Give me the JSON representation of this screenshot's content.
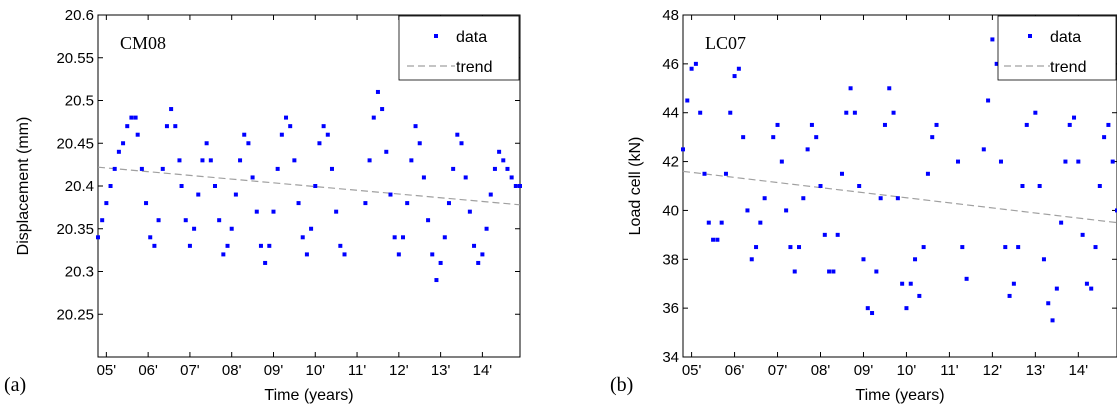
{
  "chart_data": [
    {
      "type": "scatter",
      "panel_label": "(a)",
      "title": "CM08",
      "xlabel": "Time (years)",
      "ylabel": "Displacement (mm)",
      "xlim": [
        2004.8,
        2014.9
      ],
      "ylim": [
        20.2,
        20.6
      ],
      "xticks": [
        2005,
        2006,
        2007,
        2008,
        2009,
        2010,
        2011,
        2012,
        2013,
        2014
      ],
      "xtick_labels": [
        "05'",
        "06'",
        "07'",
        "08'",
        "09'",
        "10'",
        "11'",
        "12'",
        "13'",
        "14'"
      ],
      "yticks": [
        20.25,
        20.3,
        20.35,
        20.4,
        20.45,
        20.5,
        20.55,
        20.6
      ],
      "ytick_labels": [
        "20.25",
        "20.3",
        "20.35",
        "20.4",
        "20.45",
        "20.5",
        "20.55",
        "20.6"
      ],
      "legend": {
        "position": "top-right",
        "entries": [
          "data",
          "trend"
        ]
      },
      "series": [
        {
          "name": "data",
          "color": "#0000ff",
          "x": [
            2004.8,
            2004.9,
            2005.0,
            2005.1,
            2005.2,
            2005.3,
            2005.4,
            2005.5,
            2005.6,
            2005.7,
            2005.75,
            2005.85,
            2005.95,
            2006.05,
            2006.15,
            2006.25,
            2006.35,
            2006.45,
            2006.55,
            2006.65,
            2006.75,
            2006.8,
            2006.9,
            2007.0,
            2007.1,
            2007.2,
            2007.3,
            2007.4,
            2007.5,
            2007.6,
            2007.7,
            2007.8,
            2007.9,
            2008.0,
            2008.1,
            2008.2,
            2008.3,
            2008.4,
            2008.5,
            2008.6,
            2008.7,
            2008.8,
            2008.9,
            2009.0,
            2009.1,
            2009.2,
            2009.3,
            2009.4,
            2009.5,
            2009.6,
            2009.7,
            2009.8,
            2009.9,
            2010.0,
            2010.1,
            2010.2,
            2010.3,
            2010.4,
            2010.5,
            2010.6,
            2010.7,
            2011.2,
            2011.3,
            2011.4,
            2011.5,
            2011.6,
            2011.7,
            2011.8,
            2011.9,
            2012.0,
            2012.1,
            2012.2,
            2012.3,
            2012.4,
            2012.5,
            2012.6,
            2012.7,
            2012.8,
            2012.9,
            2013.0,
            2013.1,
            2013.2,
            2013.3,
            2013.4,
            2013.5,
            2013.6,
            2013.7,
            2013.8,
            2013.9,
            2014.0,
            2014.1,
            2014.2,
            2014.3,
            2014.4,
            2014.5,
            2014.6,
            2014.7,
            2014.8,
            2014.9
          ],
          "y": [
            20.34,
            20.36,
            20.38,
            20.4,
            20.42,
            20.44,
            20.45,
            20.47,
            20.48,
            20.48,
            20.46,
            20.42,
            20.38,
            20.34,
            20.33,
            20.36,
            20.42,
            20.47,
            20.49,
            20.47,
            20.43,
            20.4,
            20.36,
            20.33,
            20.35,
            20.39,
            20.43,
            20.45,
            20.43,
            20.4,
            20.36,
            20.32,
            20.33,
            20.35,
            20.39,
            20.43,
            20.46,
            20.45,
            20.41,
            20.37,
            20.33,
            20.31,
            20.33,
            20.37,
            20.42,
            20.46,
            20.48,
            20.47,
            20.43,
            20.38,
            20.34,
            20.32,
            20.35,
            20.4,
            20.45,
            20.47,
            20.46,
            20.42,
            20.37,
            20.33,
            20.32,
            20.38,
            20.43,
            20.48,
            20.51,
            20.49,
            20.44,
            20.39,
            20.34,
            20.32,
            20.34,
            20.38,
            20.43,
            20.47,
            20.45,
            20.41,
            20.36,
            20.32,
            20.29,
            20.31,
            20.34,
            20.38,
            20.42,
            20.46,
            20.45,
            20.41,
            20.37,
            20.33,
            20.31,
            20.32,
            20.35,
            20.39,
            20.42,
            20.44,
            20.43,
            20.42,
            20.41,
            20.4,
            20.4
          ]
        },
        {
          "name": "trend",
          "color": "#a0a0a0",
          "x": [
            2004.8,
            2014.9
          ],
          "y": [
            20.422,
            20.378
          ]
        }
      ]
    },
    {
      "type": "scatter",
      "panel_label": "(b)",
      "title": "LC07",
      "xlabel": "Time (years)",
      "ylabel": "Load cell (kN)",
      "xlim": [
        2004.8,
        2014.9
      ],
      "ylim": [
        34,
        48
      ],
      "xticks": [
        2005,
        2006,
        2007,
        2008,
        2009,
        2010,
        2011,
        2012,
        2013,
        2014
      ],
      "xtick_labels": [
        "05'",
        "06'",
        "07'",
        "08'",
        "09'",
        "10'",
        "11'",
        "12'",
        "13'",
        "14'"
      ],
      "yticks": [
        34,
        36,
        38,
        40,
        42,
        44,
        46,
        48
      ],
      "ytick_labels": [
        "34",
        "36",
        "38",
        "40",
        "42",
        "44",
        "46",
        "48"
      ],
      "legend": {
        "position": "top-right",
        "entries": [
          "data",
          "trend"
        ]
      },
      "series": [
        {
          "name": "data",
          "color": "#0000ff",
          "x": [
            2004.8,
            2004.9,
            2005.0,
            2005.1,
            2005.2,
            2005.3,
            2005.4,
            2005.5,
            2005.6,
            2005.7,
            2005.8,
            2005.9,
            2006.0,
            2006.1,
            2006.2,
            2006.3,
            2006.4,
            2006.5,
            2006.6,
            2006.7,
            2006.9,
            2007.0,
            2007.1,
            2007.2,
            2007.3,
            2007.4,
            2007.5,
            2007.6,
            2007.7,
            2007.8,
            2007.9,
            2008.0,
            2008.1,
            2008.2,
            2008.3,
            2008.4,
            2008.5,
            2008.6,
            2008.7,
            2008.8,
            2008.9,
            2009.0,
            2009.1,
            2009.2,
            2009.3,
            2009.4,
            2009.5,
            2009.6,
            2009.7,
            2009.8,
            2009.9,
            2010.0,
            2010.1,
            2010.2,
            2010.3,
            2010.4,
            2010.5,
            2010.6,
            2010.7,
            2011.2,
            2011.3,
            2011.4,
            2011.8,
            2011.9,
            2012.0,
            2012.1,
            2012.2,
            2012.3,
            2012.4,
            2012.5,
            2012.6,
            2012.7,
            2012.8,
            2013.0,
            2013.1,
            2013.2,
            2013.3,
            2013.4,
            2013.5,
            2013.6,
            2013.7,
            2013.8,
            2013.9,
            2014.0,
            2014.1,
            2014.2,
            2014.3,
            2014.4,
            2014.5,
            2014.6,
            2014.7,
            2014.8,
            2014.9
          ],
          "y": [
            42.5,
            44.5,
            45.8,
            46.0,
            44.0,
            41.5,
            39.5,
            38.8,
            38.8,
            39.5,
            41.5,
            44.0,
            45.5,
            45.8,
            43.0,
            40.0,
            38.0,
            38.5,
            39.5,
            40.5,
            43.0,
            43.5,
            42.0,
            40.0,
            38.5,
            37.5,
            38.5,
            40.5,
            42.5,
            43.5,
            43.0,
            41.0,
            39.0,
            37.5,
            37.5,
            39.0,
            41.5,
            44.0,
            45.0,
            44.0,
            41.0,
            38.0,
            36.0,
            35.8,
            37.5,
            40.5,
            43.5,
            45.0,
            44.0,
            40.5,
            37.0,
            36.0,
            37.0,
            38.0,
            36.5,
            38.5,
            41.5,
            43.0,
            43.5,
            42.0,
            38.5,
            37.2,
            42.5,
            44.5,
            47.0,
            46.0,
            42.0,
            38.5,
            36.5,
            37.0,
            38.5,
            41.0,
            43.5,
            44.0,
            41.0,
            38.0,
            36.2,
            35.5,
            36.8,
            39.5,
            42.0,
            43.5,
            43.8,
            42.0,
            39.0,
            37.0,
            36.8,
            38.5,
            41.0,
            43.0,
            43.5,
            42.0,
            40.0
          ]
        },
        {
          "name": "trend",
          "color": "#a0a0a0",
          "x": [
            2004.8,
            2014.9
          ],
          "y": [
            41.6,
            39.5
          ]
        }
      ]
    }
  ]
}
